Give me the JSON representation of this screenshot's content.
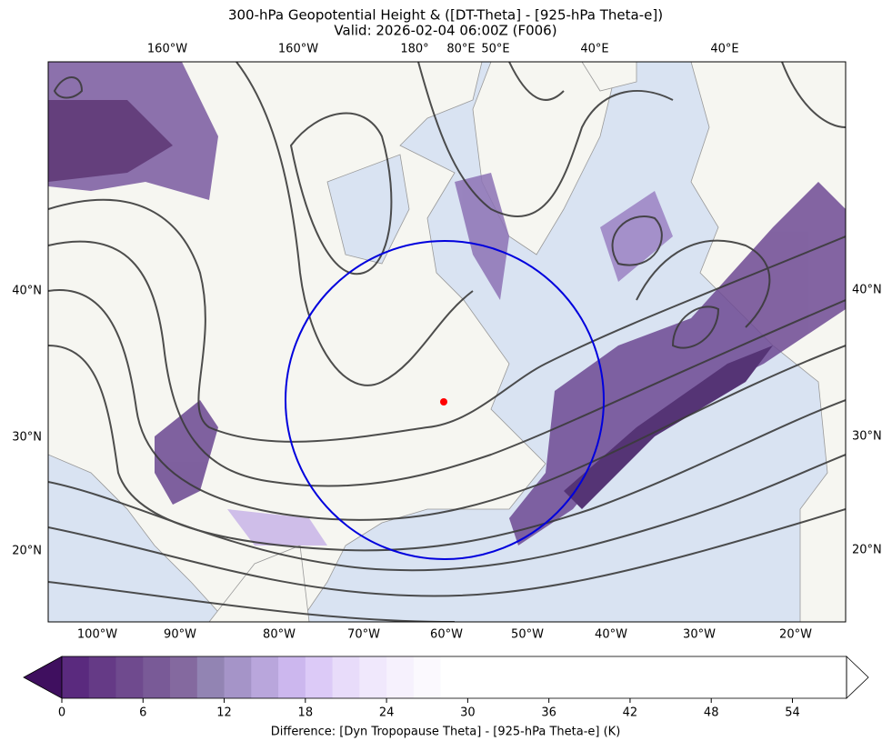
{
  "title": "300-hPa Geopotential Height & ([DT-Theta] - [925-hPa Theta-e])",
  "subtitle": "Valid: 2026-02-04 06:00Z (F006)",
  "top_labels": [
    "160°W",
    "160°W",
    "180°",
    "80°E",
    "50°E",
    "40°E",
    "40°E"
  ],
  "left_labels": [
    "40°N",
    "30°N",
    "20°N"
  ],
  "right_labels": [
    "40°N",
    "30°N",
    "20°N"
  ],
  "bottom_labels": [
    "100°W",
    "90°W",
    "80°W",
    "70°W",
    "60°W",
    "50°W",
    "40°W",
    "30°W",
    "20°W"
  ],
  "colorbar": {
    "label": "Difference: [Dyn Tropopause Theta] - [925-hPa Theta-e] (K)",
    "lim": [
      0,
      58
    ],
    "ticks": [
      0,
      6,
      12,
      18,
      24,
      30,
      36,
      42,
      48,
      54
    ],
    "under_color": "#3f0f5f",
    "over_color": "#ffffff",
    "colors": [
      "#5a2a7e",
      "#653a86",
      "#6f4a8e",
      "#795a97",
      "#84699f",
      "#9284b3",
      "#a594c8",
      "#b9a6dc",
      "#ccb7ee",
      "#dccaf7",
      "#e8dcfa",
      "#f0e8fc",
      "#f6f1fd",
      "#fbf9fe",
      "#ffffff",
      "#ffffff",
      "#ffffff",
      "#ffffff",
      "#ffffff",
      "#ffffff",
      "#ffffff",
      "#ffffff",
      "#ffffff",
      "#ffffff",
      "#ffffff",
      "#ffffff",
      "#ffffff",
      "#ffffff",
      "#ffffff"
    ]
  }
}
